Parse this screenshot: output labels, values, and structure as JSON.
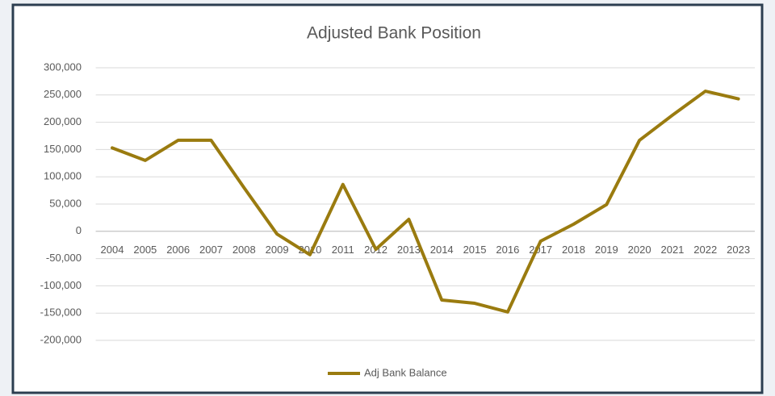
{
  "chart_data": {
    "type": "line",
    "title": "Adjusted Bank Position",
    "categories": [
      "2004",
      "2005",
      "2006",
      "2007",
      "2008",
      "2009",
      "2010",
      "2011",
      "2012",
      "2013",
      "2014",
      "2015",
      "2016",
      "2017",
      "2018",
      "2019",
      "2020",
      "2021",
      "2022",
      "2023"
    ],
    "series": [
      {
        "name": "Adj Bank Balance",
        "color": "#9a7b0f",
        "values": [
          153000,
          130000,
          167000,
          167000,
          80000,
          -5000,
          -43000,
          86000,
          -33000,
          22000,
          -126000,
          -132000,
          -148000,
          -18000,
          13000,
          49000,
          167000,
          213000,
          257000,
          243000
        ]
      }
    ],
    "ylim": [
      -200000,
      300000
    ],
    "yticks": [
      {
        "value": -200000,
        "label": "-200,000"
      },
      {
        "value": -150000,
        "label": "-150,000"
      },
      {
        "value": -100000,
        "label": "-100,000"
      },
      {
        "value": -50000,
        "label": "-50,000"
      },
      0,
      {
        "value": 50000,
        "label": "50,000"
      },
      {
        "value": 100000,
        "label": "100,000"
      },
      {
        "value": 150000,
        "label": "150,000"
      },
      {
        "value": 200000,
        "label": "200,000"
      },
      {
        "value": 250000,
        "label": "250,000"
      },
      {
        "value": 300000,
        "label": "300,000"
      }
    ],
    "grid": true,
    "legend": "bottom"
  }
}
